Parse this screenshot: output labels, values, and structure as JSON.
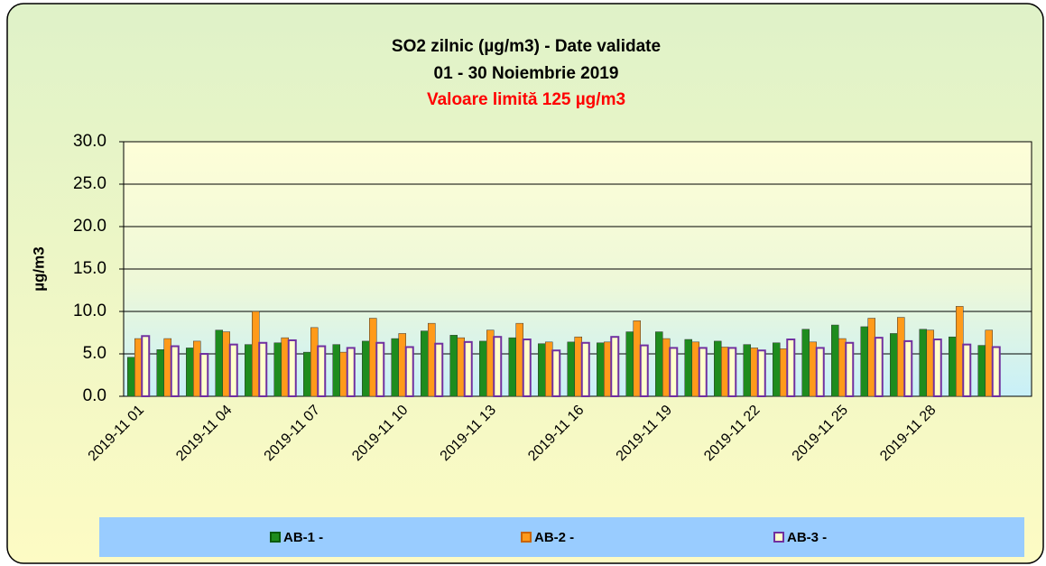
{
  "chart_data": {
    "type": "bar",
    "title": "SO2 zilnic (µg/m3)  - Date validate",
    "subtitle": "01 - 30 Noiembrie 2019",
    "annotation": "Valoare limită 125 µg/m3",
    "y_label": "µg/m3",
    "categories": [
      "2019-11 01",
      null,
      null,
      "2019-11 04",
      null,
      null,
      "2019-11 07",
      null,
      null,
      "2019-11 10",
      null,
      null,
      "2019-11 13",
      null,
      null,
      "2019-11 16",
      null,
      null,
      "2019-11 19",
      null,
      null,
      "2019-11 22",
      null,
      null,
      "2019-11 25",
      null,
      null,
      "2019-11 28",
      null,
      null
    ],
    "series": [
      {
        "name": "AB-1 -",
        "color": "#1e8c1e",
        "values": [
          4.6,
          5.5,
          5.7,
          7.8,
          6.1,
          6.3,
          5.2,
          6.1,
          6.5,
          6.8,
          7.7,
          7.2,
          6.5,
          6.9,
          6.2,
          6.4,
          6.3,
          7.6,
          7.6,
          6.7,
          6.5,
          6.1,
          6.3,
          7.9,
          8.4,
          8.2,
          7.4,
          7.9,
          7.0,
          6.0
        ]
      },
      {
        "name": "AB-2 -",
        "color": "#ff9a1a",
        "values": [
          6.8,
          6.8,
          6.5,
          7.6,
          10.0,
          6.9,
          8.1,
          5.2,
          9.2,
          7.4,
          8.6,
          6.9,
          7.8,
          8.6,
          6.4,
          7.0,
          6.4,
          8.9,
          6.8,
          6.4,
          5.8,
          5.7,
          5.6,
          6.4,
          6.8,
          9.2,
          9.3,
          7.8,
          10.6,
          7.8
        ]
      },
      {
        "name": "AB-3 -",
        "color": "#7030a0",
        "values": [
          7.1,
          5.9,
          5.0,
          6.1,
          6.3,
          6.6,
          5.9,
          5.7,
          6.3,
          5.8,
          6.2,
          6.4,
          7.0,
          6.7,
          5.4,
          6.3,
          7.0,
          6.0,
          5.7,
          5.7,
          5.7,
          5.4,
          6.7,
          5.7,
          6.3,
          6.9,
          6.5,
          6.7,
          6.1,
          5.8
        ]
      }
    ],
    "ylim": [
      0,
      30
    ],
    "yticks": [
      {
        "value": 0,
        "label": "0.0"
      },
      {
        "value": 5,
        "label": "5.0"
      },
      {
        "value": 10,
        "label": "10.0"
      },
      {
        "value": 15,
        "label": "15.0"
      },
      {
        "value": 20,
        "label": "20.0"
      },
      {
        "value": 25,
        "label": "25.0"
      },
      {
        "value": 30,
        "label": "30.0"
      }
    ],
    "grid": true,
    "legend": "bottom"
  }
}
